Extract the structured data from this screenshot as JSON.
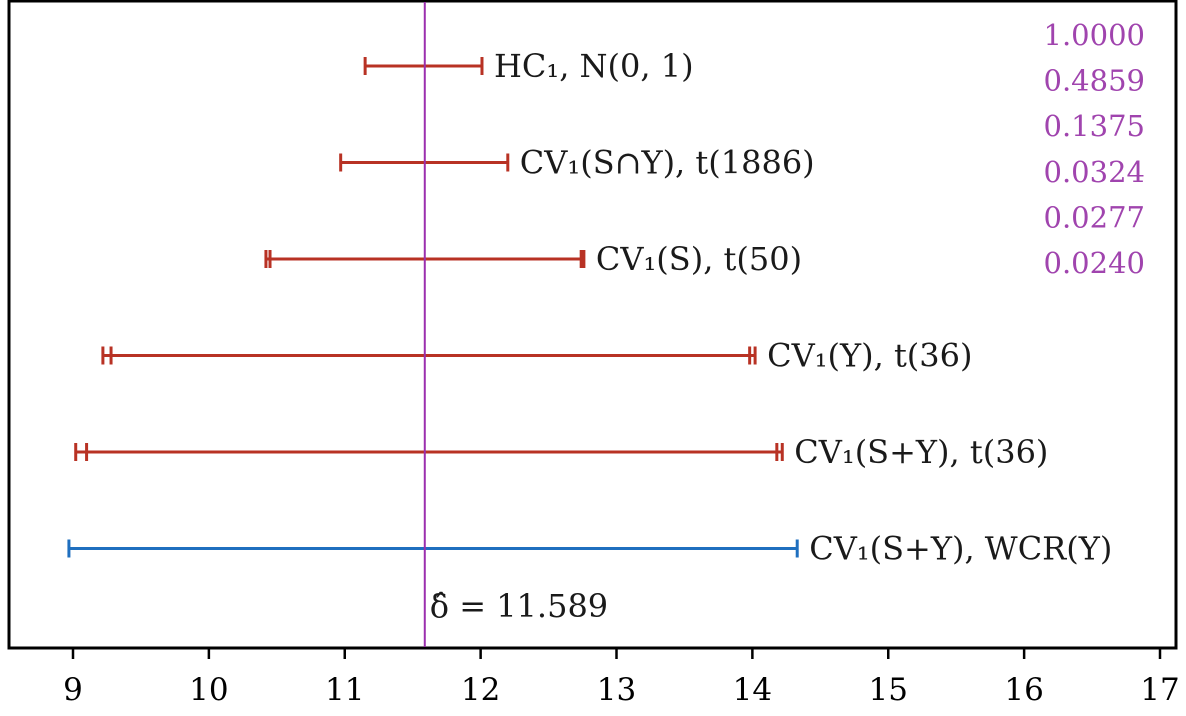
{
  "chart_data": {
    "type": "interval",
    "xlim": [
      9,
      17
    ],
    "x_ticks": [
      9,
      10,
      11,
      12,
      13,
      14,
      15,
      16,
      17
    ],
    "grid": false,
    "estimate": {
      "value": 11.589,
      "label": "δ̂ = 11.589",
      "color": "#9b2fae"
    },
    "intervals": [
      {
        "label": "HC₁, N(0, 1)",
        "lower": [
          11.15
        ],
        "upper": [
          12.01
        ],
        "color": "#b83224"
      },
      {
        "label": "CV₁(S∩Y), t(1886)",
        "lower": [
          10.97
        ],
        "upper": [
          12.2
        ],
        "color": "#b83224"
      },
      {
        "label": "CV₁(S), t(50)",
        "lower": [
          10.42,
          10.45
        ],
        "upper": [
          12.74,
          12.76
        ],
        "color": "#b83224"
      },
      {
        "label": "CV₁(Y), t(36)",
        "lower": [
          9.22,
          9.28
        ],
        "upper": [
          13.98,
          14.02
        ],
        "color": "#b83224"
      },
      {
        "label": "CV₁(S+Y), t(36)",
        "lower": [
          9.02,
          9.1
        ],
        "upper": [
          14.18,
          14.22
        ],
        "color": "#b83224"
      },
      {
        "label": "CV₁(S+Y), WCR(Y)",
        "lower": [
          8.97
        ],
        "upper": [
          14.33
        ],
        "color": "#1f6fbf"
      }
    ],
    "p_values": [
      "1.0000",
      "0.4859",
      "0.1375",
      "0.0324",
      "0.0277",
      "0.0240"
    ],
    "p_value_color": "#a044ae"
  }
}
